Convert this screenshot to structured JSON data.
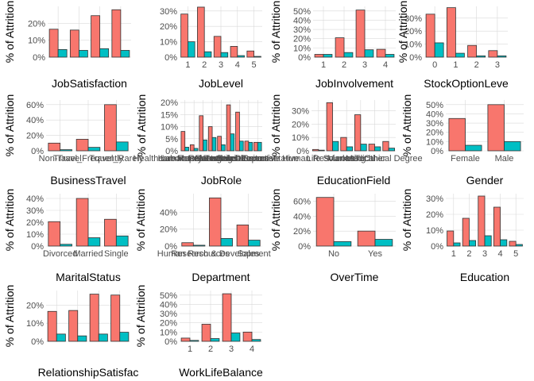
{
  "colors": {
    "attr_yes": "#F8766D",
    "attr_no": "#00BFC4",
    "grid": "#d9d9d9",
    "text": "#4d4d4d",
    "title": "#000000"
  },
  "chart_data": [
    {
      "type": "bar",
      "xlabel": "JobSatisfaction",
      "ylabel": "% of Attrition",
      "categories": [
        "",
        "",
        "",
        ""
      ],
      "ylim": [
        0,
        30
      ],
      "yticks": [
        0,
        10,
        20
      ],
      "ytick_labels": [
        "0%",
        "10%",
        "20%"
      ],
      "series": [
        {
          "values": [
            16.5,
            16.0,
            24.5,
            28.0
          ]
        },
        {
          "values": [
            4.5,
            4.0,
            5.0,
            4.0
          ]
        }
      ]
    },
    {
      "type": "bar",
      "xlabel": "JobLevel",
      "ylabel": "",
      "categories": [
        "1",
        "2",
        "3",
        "4",
        "5"
      ],
      "ylim": [
        0,
        33
      ],
      "yticks": [
        0,
        10,
        20,
        30
      ],
      "ytick_labels": [
        "0%",
        "10%",
        "20%",
        "30%"
      ],
      "series": [
        {
          "values": [
            28.0,
            32.5,
            13.5,
            7.0,
            4.0
          ]
        },
        {
          "values": [
            10.0,
            3.5,
            3.0,
            1.0,
            0.5
          ]
        }
      ]
    },
    {
      "type": "bar",
      "xlabel": "JobInvolvement",
      "ylabel": "% of Attrition",
      "categories": [
        "1",
        "2",
        "3",
        "4"
      ],
      "ylim": [
        0,
        55
      ],
      "yticks": [
        0,
        10,
        20,
        30,
        40,
        50
      ],
      "ytick_labels": [
        "0%",
        "10%",
        "20%",
        "30%",
        "40%",
        "50%"
      ],
      "series": [
        {
          "values": [
            3.0,
            21.0,
            51.0,
            8.5
          ]
        },
        {
          "values": [
            3.0,
            5.0,
            8.0,
            3.0
          ]
        }
      ]
    },
    {
      "type": "bar",
      "xlabel": "StockOptionLeve",
      "ylabel": "% of Attrition",
      "categories": [
        "0",
        "1",
        "2",
        "3"
      ],
      "ylim": [
        0,
        39
      ],
      "yticks": [
        0,
        10,
        20,
        30
      ],
      "ytick_labels": [
        "0%",
        "10%",
        "20%",
        "30%"
      ],
      "series": [
        {
          "values": [
            33.0,
            38.0,
            9.0,
            5.0
          ]
        },
        {
          "values": [
            11.0,
            3.0,
            1.0,
            1.0
          ]
        }
      ]
    },
    {
      "type": "bar",
      "xlabel": "BusinessTravel",
      "ylabel": "% of Attrition",
      "categories": [
        "Non-Travel",
        "Travel_Frequently",
        "Travel_Rarely"
      ],
      "ytick_labels": [
        "0%",
        "20%",
        "40%",
        "60%"
      ],
      "yticks": [
        0,
        20,
        40,
        60
      ],
      "ylim": [
        0,
        66
      ],
      "series": [
        {
          "values": [
            10.0,
            15.0,
            60.0
          ]
        },
        {
          "values": [
            1.5,
            4.5,
            11.5
          ]
        }
      ]
    },
    {
      "type": "bar",
      "xlabel": "JobRole",
      "ylabel": "% of Attrition",
      "categories": [
        "Healthcare Representative",
        "Human Resources",
        "Laboratory Technician",
        "Manager",
        "Manufacturing Director",
        "Research Director",
        "Research Scientist",
        "Sales Executive",
        "Sales Representative"
      ],
      "ylim": [
        0,
        21
      ],
      "yticks": [
        0,
        5,
        10,
        15,
        20
      ],
      "ytick_labels": [
        "0%",
        "5%",
        "10%",
        "15%",
        "20%"
      ],
      "series": [
        {
          "values": [
            8.0,
            2.5,
            14.5,
            10.0,
            6.0,
            19.0,
            16.0,
            4.0,
            3.5
          ]
        },
        {
          "values": [
            1.5,
            1.0,
            4.5,
            5.5,
            2.5,
            7.0,
            4.0,
            3.5,
            3.5
          ]
        }
      ]
    },
    {
      "type": "bar",
      "xlabel": "EducationField",
      "ylabel": "% of Attrition",
      "categories": [
        "Human Resources",
        "Life Sciences",
        "Marketing",
        "Medical",
        "Other",
        "Technical Degree"
      ],
      "ylim": [
        0,
        38
      ],
      "yticks": [
        0,
        10,
        20,
        30
      ],
      "ytick_labels": [
        "0%",
        "10%",
        "20%",
        "30%"
      ],
      "series": [
        {
          "values": [
            1.0,
            36.0,
            10.0,
            27.0,
            5.0,
            7.0
          ]
        },
        {
          "values": [
            0.5,
            7.0,
            3.0,
            5.0,
            3.0,
            2.0
          ]
        }
      ]
    },
    {
      "type": "bar",
      "xlabel": "Gender",
      "ylabel": "% of Attrition",
      "categories": [
        "Female",
        "Male"
      ],
      "ylim": [
        0,
        55
      ],
      "yticks": [
        0,
        10,
        20,
        30,
        40,
        50
      ],
      "ytick_labels": [
        "0%",
        "10%",
        "20%",
        "30%",
        "40%",
        "50%"
      ],
      "series": [
        {
          "values": [
            35.0,
            50.0
          ]
        },
        {
          "values": [
            6.0,
            10.0
          ]
        }
      ]
    },
    {
      "type": "bar",
      "xlabel": "MaritalStatus",
      "ylabel": "% of Attrition",
      "categories": [
        "Divorced",
        "Married",
        "Single"
      ],
      "ylim": [
        0,
        44
      ],
      "yticks": [
        0,
        10,
        20,
        30,
        40
      ],
      "ytick_labels": [
        "0%",
        "10%",
        "20%",
        "30%",
        "40%"
      ],
      "series": [
        {
          "values": [
            20.5,
            40.0,
            22.5
          ]
        },
        {
          "values": [
            1.5,
            7.0,
            8.5
          ]
        }
      ]
    },
    {
      "type": "bar",
      "xlabel": "Department",
      "ylabel": "% of Attrition",
      "categories": [
        "Human Resources",
        "Research & Development",
        "Sales"
      ],
      "ylim": [
        0,
        62
      ],
      "yticks": [
        0,
        20,
        40
      ],
      "ytick_labels": [
        "0%",
        "20%",
        "40%"
      ],
      "series": [
        {
          "values": [
            4.0,
            57.0,
            25.0
          ]
        },
        {
          "values": [
            1.0,
            9.0,
            7.0
          ]
        }
      ]
    },
    {
      "type": "bar",
      "xlabel": "OverTime",
      "ylabel": "% of Attrition",
      "categories": [
        "No",
        "Yes"
      ],
      "ylim": [
        0,
        70
      ],
      "yticks": [
        0,
        20,
        40,
        60
      ],
      "ytick_labels": [
        "0%",
        "20%",
        "40%",
        "60%"
      ],
      "series": [
        {
          "values": [
            65.0,
            20.0
          ]
        },
        {
          "values": [
            6.0,
            9.0
          ]
        }
      ]
    },
    {
      "type": "bar",
      "xlabel": "Education",
      "ylabel": "% of Attrition",
      "categories": [
        "1",
        "2",
        "3",
        "4",
        "5"
      ],
      "ylim": [
        0,
        33
      ],
      "yticks": [
        0,
        10,
        20,
        30
      ],
      "ytick_labels": [
        "0%",
        "10%",
        "20%",
        "30%"
      ],
      "series": [
        {
          "values": [
            9.5,
            17.5,
            31.5,
            24.5,
            3.0
          ]
        },
        {
          "values": [
            2.0,
            3.5,
            6.5,
            4.0,
            1.0
          ]
        }
      ]
    },
    {
      "type": "bar",
      "xlabel": "RelationshipSatisfac",
      "ylabel": "% of Attrition",
      "categories": [
        "",
        "",
        "",
        ""
      ],
      "ylim": [
        0,
        28
      ],
      "yticks": [
        0,
        10,
        20
      ],
      "ytick_labels": [
        "0%",
        "10%",
        "20%"
      ],
      "series": [
        {
          "values": [
            16.5,
            17.0,
            26.0,
            25.5
          ]
        },
        {
          "values": [
            4.0,
            3.0,
            4.0,
            5.0
          ]
        }
      ]
    },
    {
      "type": "bar",
      "xlabel": "WorkLifeBalance",
      "ylabel": "% of Attrition",
      "categories": [
        "1",
        "2",
        "3",
        "4"
      ],
      "ylim": [
        0,
        55
      ],
      "yticks": [
        0,
        10,
        20,
        30,
        40,
        50
      ],
      "ytick_labels": [
        "0%",
        "10%",
        "20%",
        "30%",
        "40%",
        "50%"
      ],
      "series": [
        {
          "values": [
            3.5,
            18.5,
            51.5,
            10.0
          ]
        },
        {
          "values": [
            1.0,
            3.0,
            9.0,
            2.0
          ]
        }
      ]
    }
  ]
}
